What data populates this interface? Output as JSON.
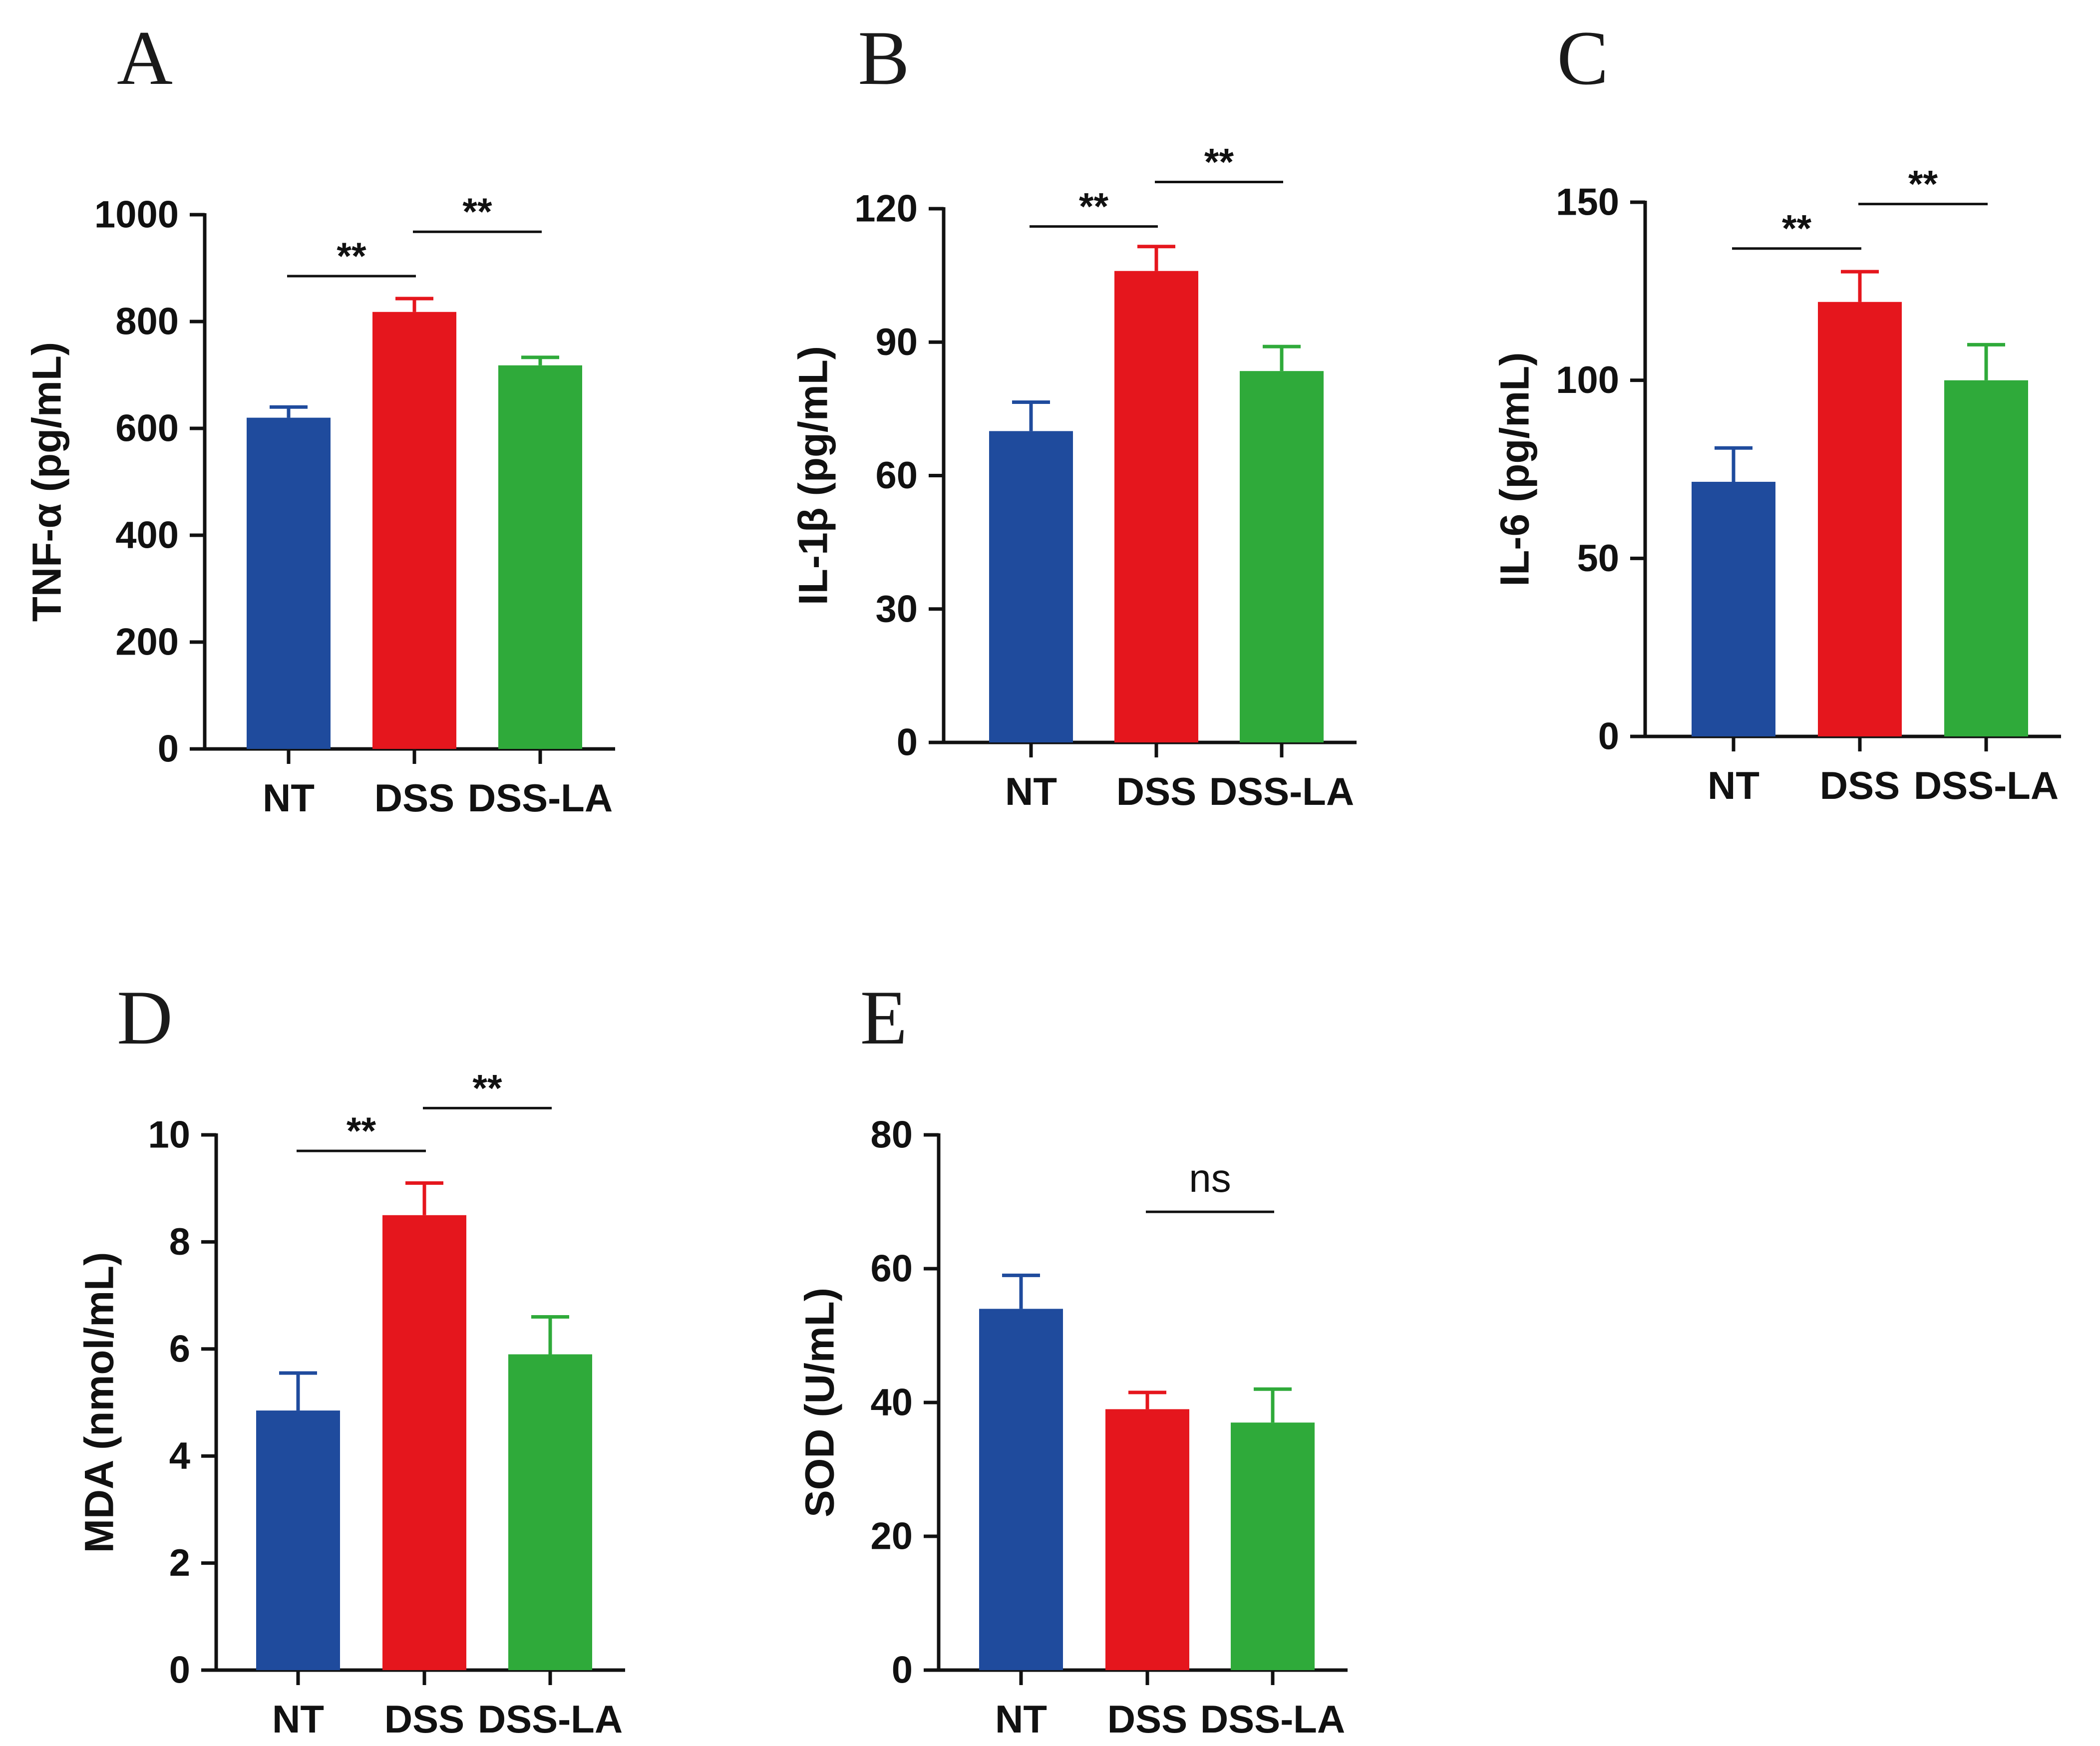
{
  "colors": {
    "NT": "#1f4b9d",
    "DSS": "#e5161d",
    "DSS-LA": "#2faa3a",
    "axis": "#111111"
  },
  "chart_data": [
    {
      "panel": "A",
      "type": "bar",
      "ylabel": "TNF-α (pg/mL)",
      "categories": [
        "NT",
        "DSS",
        "DSS-LA"
      ],
      "values": [
        620,
        818,
        718
      ],
      "errors": [
        20,
        25,
        15
      ],
      "ylim": [
        0,
        1000
      ],
      "yticks": [
        0,
        200,
        400,
        600,
        800,
        1000
      ],
      "significance": [
        {
          "from": 0,
          "to": 1,
          "label": "**",
          "y": 885
        },
        {
          "from": 1,
          "to": 2,
          "label": "**",
          "y": 968
        }
      ]
    },
    {
      "panel": "B",
      "type": "bar",
      "ylabel": "IL-1β (pg/mL)",
      "categories": [
        "NT",
        "DSS",
        "DSS-LA"
      ],
      "values": [
        70,
        106,
        83.5
      ],
      "errors": [
        6.5,
        5.5,
        5.5
      ],
      "ylim": [
        0,
        120
      ],
      "yticks": [
        0,
        30,
        60,
        90,
        120
      ],
      "significance": [
        {
          "from": 0,
          "to": 1,
          "label": "**",
          "y": 116
        },
        {
          "from": 1,
          "to": 2,
          "label": "**",
          "y": 126
        }
      ]
    },
    {
      "panel": "C",
      "type": "bar",
      "ylabel": "IL-6 (pg/mL)",
      "categories": [
        "NT",
        "DSS",
        "DSS-LA"
      ],
      "values": [
        71.5,
        122,
        100
      ],
      "errors": [
        9.5,
        8.5,
        10
      ],
      "ylim": [
        0,
        150
      ],
      "yticks": [
        0,
        50,
        100,
        150
      ],
      "significance": [
        {
          "from": 0,
          "to": 1,
          "label": "**",
          "y": 137
        },
        {
          "from": 1,
          "to": 2,
          "label": "**",
          "y": 149.5
        }
      ]
    },
    {
      "panel": "D",
      "type": "bar",
      "ylabel": "MDA (nmol/mL)",
      "categories": [
        "NT",
        "DSS",
        "DSS-LA"
      ],
      "values": [
        4.85,
        8.5,
        5.9
      ],
      "errors": [
        0.7,
        0.6,
        0.7
      ],
      "ylim": [
        0,
        10
      ],
      "yticks": [
        0,
        2,
        4,
        6,
        8,
        10
      ],
      "significance": [
        {
          "from": 0,
          "to": 1,
          "label": "**",
          "y": 9.7
        },
        {
          "from": 1,
          "to": 2,
          "label": "**",
          "y": 10.5
        }
      ]
    },
    {
      "panel": "E",
      "type": "bar",
      "ylabel": "SOD (U/mL)",
      "categories": [
        "NT",
        "DSS",
        "DSS-LA"
      ],
      "values": [
        54,
        39,
        37
      ],
      "errors": [
        5,
        2.5,
        5
      ],
      "ylim": [
        0,
        80
      ],
      "yticks": [
        0,
        20,
        40,
        60,
        80
      ],
      "significance": [
        {
          "from": 1,
          "to": 2,
          "label": "ns",
          "y": 68.5
        }
      ]
    }
  ]
}
